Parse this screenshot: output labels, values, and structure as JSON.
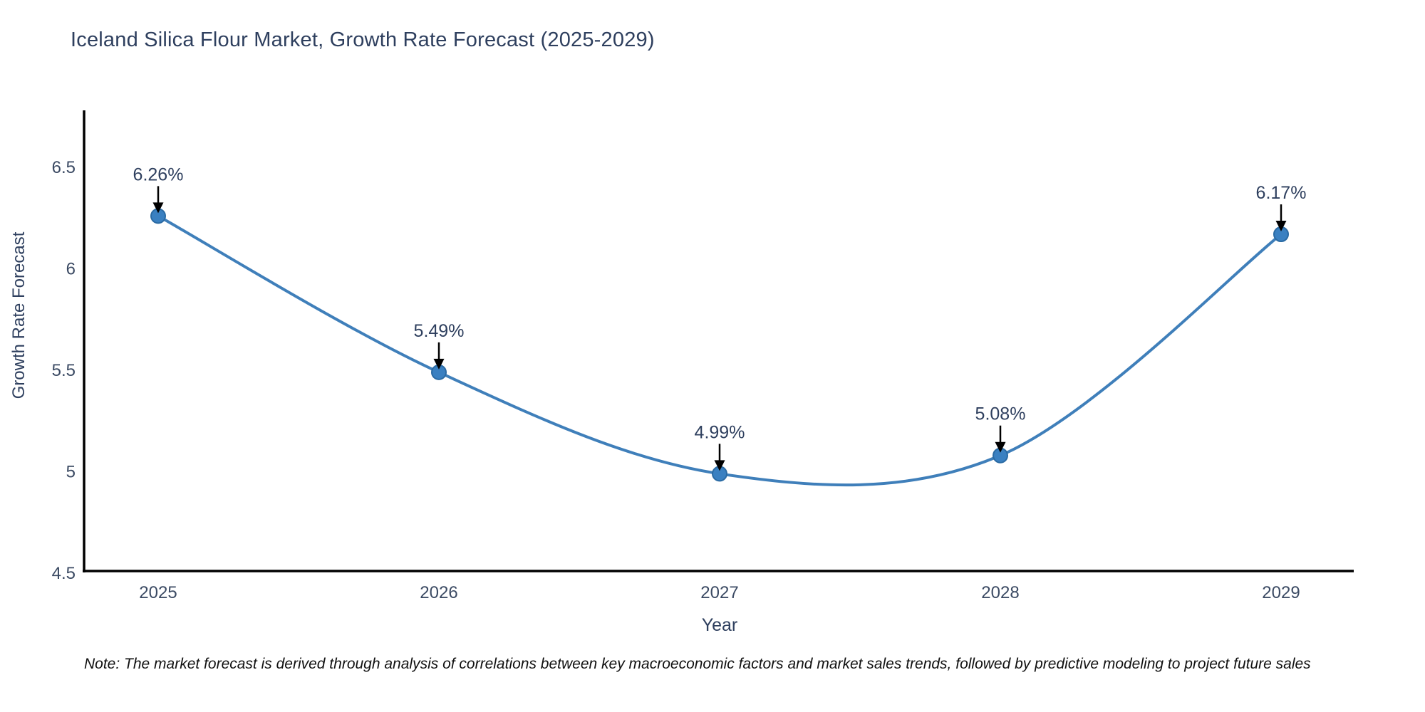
{
  "title": "Iceland Silica Flour Market, Growth Rate Forecast (2025-2029)",
  "axes": {
    "x_label": "Year",
    "y_label": "Growth Rate Forecast"
  },
  "note": "Note: The market forecast is derived through analysis of correlations between key macroeconomic factors and market sales trends, followed by predictive modeling to project future sales",
  "chart_data": {
    "type": "line",
    "line_shape": "spline",
    "title": "Iceland Silica Flour Market, Growth Rate Forecast (2025-2029)",
    "xlabel": "Year",
    "ylabel": "Growth Rate Forecast",
    "x": [
      2025,
      2026,
      2027,
      2028,
      2029
    ],
    "values": [
      6.26,
      5.49,
      4.99,
      5.08,
      6.17
    ],
    "point_labels": [
      "6.26%",
      "5.49%",
      "4.99%",
      "5.08%",
      "6.17%"
    ],
    "xticks": [
      "2025",
      "2026",
      "2027",
      "2028",
      "2029"
    ],
    "yticks": [
      6.5,
      6.0,
      5.5,
      5.0,
      4.5
    ],
    "ytick_labels": [
      "6.5",
      "6",
      "5.5",
      "5",
      "4.5"
    ],
    "ylim": [
      4.5,
      6.77
    ],
    "grid": false,
    "legend": "none",
    "colors": {
      "line": "#3f7fba",
      "marker_fill": "#3a80c1",
      "marker_edge": "#2a6aa3",
      "axis": "#000000",
      "annotation_arrow": "#000000",
      "text": "#2e3f5e"
    }
  }
}
